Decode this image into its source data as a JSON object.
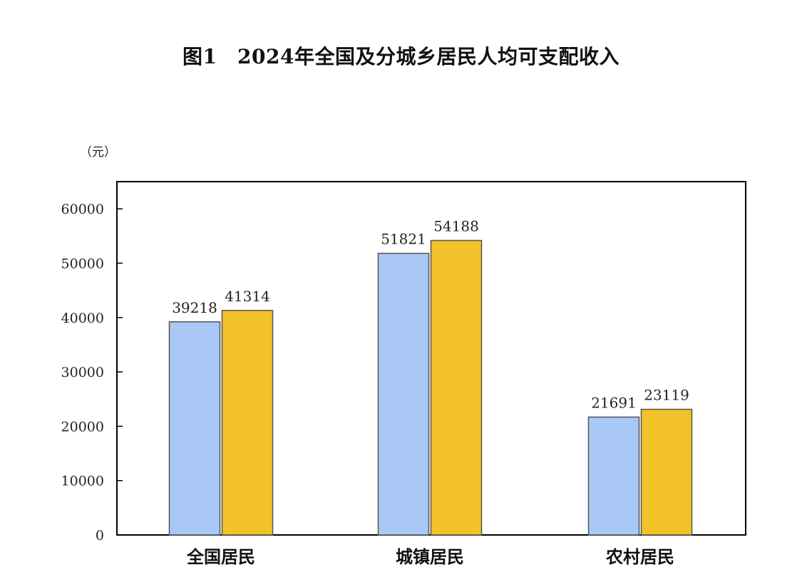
{
  "chart_data": {
    "type": "bar",
    "title": "图1　2024年全国及分城乡居民人均可支配收入",
    "ylabel": "（元）",
    "categories": [
      "全国居民",
      "城镇居民",
      "农村居民"
    ],
    "series": [
      {
        "values": [
          39218,
          51821,
          21691
        ],
        "color": "#a9c8f5"
      },
      {
        "values": [
          41314,
          54188,
          23119
        ],
        "color": "#f1c328"
      }
    ],
    "ylim": [
      0,
      65000
    ],
    "yticks": [
      0,
      10000,
      20000,
      30000,
      40000,
      50000,
      60000
    ],
    "ytick_labels": [
      "0",
      "10000",
      "20000",
      "30000",
      "40000",
      "50000",
      "60000"
    ],
    "grid": false,
    "legend": "none"
  }
}
